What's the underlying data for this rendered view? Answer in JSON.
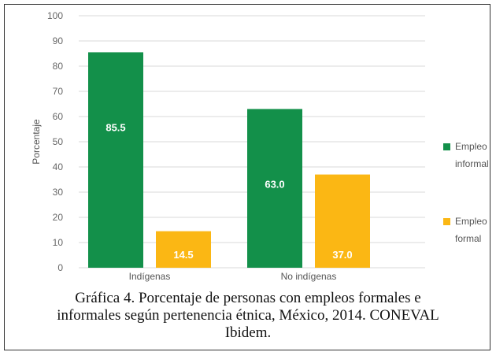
{
  "chart_data": {
    "type": "bar",
    "ylabel": "Porcentaje",
    "ylim": [
      0,
      100
    ],
    "yticks": [
      0,
      10,
      20,
      30,
      40,
      50,
      60,
      70,
      80,
      90,
      100
    ],
    "grid": true,
    "legend_position": "right",
    "categories": [
      "Indígenas",
      "No indígenas"
    ],
    "series": [
      {
        "name": "Empleo informal",
        "name_lines": [
          "Empleo",
          "informal"
        ],
        "color": "#13904a",
        "label_color": "#ffffff",
        "values": [
          85.5,
          63.0
        ],
        "labels": [
          "85.5",
          "63.0"
        ]
      },
      {
        "name": "Empleo formal",
        "name_lines": [
          "Empleo",
          "formal"
        ],
        "color": "#fbb714",
        "label_color": "#ffffff",
        "values": [
          14.5,
          37.0
        ],
        "labels": [
          "14.5",
          "37.0"
        ]
      }
    ]
  },
  "caption": {
    "line1": "Gráfica 4. Porcentaje de personas con empleos formales e",
    "line2": "informales según pertenencia étnica, México, 2014. CONEVAL",
    "line3": "Ibidem."
  }
}
